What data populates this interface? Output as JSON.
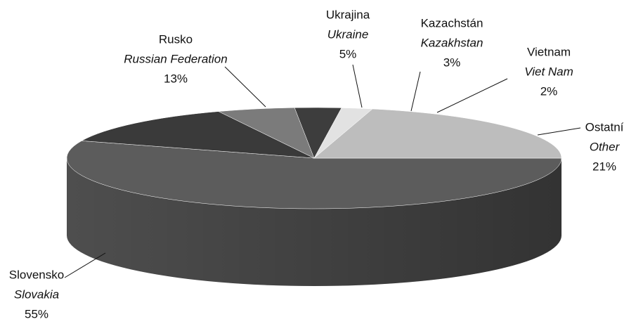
{
  "chart_data": {
    "type": "pie3d",
    "categories": [
      "Slovensko",
      "Rusko",
      "Ukrajina",
      "Kazachstán",
      "Vietnam",
      "Ostatní"
    ],
    "categories_en": [
      "Slovakia",
      "Russian Federation",
      "Ukraine",
      "Kazakhstan",
      "Viet Nam",
      "Other"
    ],
    "values": [
      55,
      13,
      5,
      3,
      2,
      21
    ],
    "value_labels": [
      "55%",
      "13%",
      "5%",
      "3%",
      "2%",
      "21%"
    ],
    "colors": [
      "#5c5c5c",
      "#3a3a3a",
      "#7b7b7b",
      "#3d3d3d",
      "#e2e2e2",
      "#bdbdbd"
    ]
  }
}
